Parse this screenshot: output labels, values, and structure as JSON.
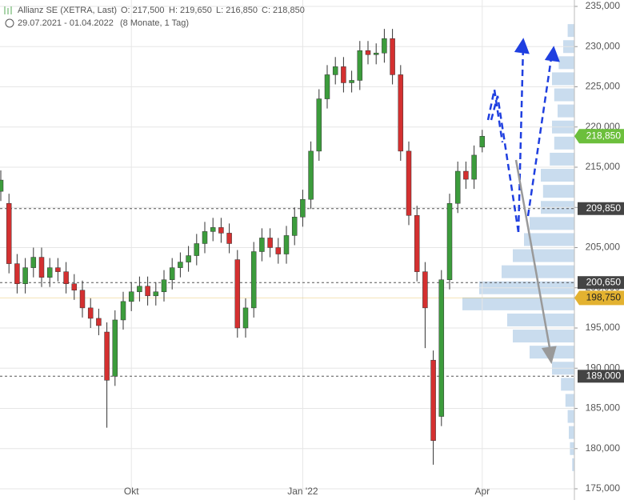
{
  "header": {
    "title": "Allianz SE (XETRA, Last)",
    "open": "O: 217,500",
    "high": "H: 219,650",
    "low": "L: 216,850",
    "close": "C: 218,850",
    "range": "29.07.2021 - 01.04.2022",
    "period": "(8 Monate, 1 Tag)"
  },
  "chart_data": {
    "type": "candlestick",
    "categories": [
      null,
      null,
      null,
      null,
      null,
      null,
      null,
      null,
      null,
      null,
      null,
      null,
      null,
      null,
      null,
      null,
      "Okt",
      null,
      null,
      null,
      null,
      null,
      null,
      null,
      null,
      null,
      null,
      null,
      null,
      null,
      null,
      null,
      null,
      null,
      null,
      null,
      null,
      "Jan '22",
      null,
      null,
      null,
      null,
      null,
      null,
      null,
      null,
      null,
      null,
      null,
      null,
      null,
      null,
      null,
      null,
      null,
      null,
      null,
      null,
      null,
      "Apr"
    ],
    "open": [
      212000,
      210500,
      203000,
      200500,
      202500,
      203800,
      201300,
      202500,
      202000,
      200500,
      199700,
      197500,
      196200,
      194500,
      189000,
      196000,
      198300,
      199500,
      200200,
      199000,
      199500,
      201000,
      202500,
      203200,
      204000,
      205500,
      207000,
      207500,
      206800,
      203500,
      195000,
      197500,
      204500,
      206200,
      205000,
      204200,
      206500,
      208800,
      211000,
      217000,
      223500,
      226500,
      227500,
      225500,
      225800,
      229500,
      229000,
      229200,
      231000,
      226500,
      217000,
      209000,
      202000,
      191000,
      184000,
      201000,
      210500,
      214500,
      213500,
      217500
    ],
    "high": [
      214600,
      211700,
      204200,
      203700,
      205000,
      205000,
      203700,
      203700,
      203200,
      201700,
      200900,
      198700,
      197400,
      195700,
      197200,
      199500,
      200700,
      201400,
      201400,
      200700,
      202200,
      203700,
      204400,
      205200,
      206700,
      208200,
      208700,
      208700,
      208000,
      204700,
      198700,
      205700,
      207400,
      207400,
      206200,
      207700,
      210000,
      212200,
      218200,
      224700,
      227700,
      228700,
      228700,
      227000,
      230700,
      230700,
      230400,
      232200,
      232200,
      227700,
      218200,
      210200,
      203200,
      192200,
      202200,
      211700,
      215700,
      215700,
      217700,
      219650
    ],
    "low": [
      210800,
      201800,
      199300,
      199300,
      201300,
      200100,
      200100,
      200800,
      199300,
      198500,
      196300,
      195000,
      194100,
      182600,
      187800,
      194800,
      197100,
      198300,
      197800,
      197800,
      198300,
      199800,
      201300,
      202000,
      202800,
      204300,
      205800,
      205600,
      204300,
      193800,
      193800,
      196300,
      203300,
      203800,
      203000,
      203000,
      205300,
      207600,
      209800,
      215800,
      222300,
      225300,
      224300,
      224300,
      224600,
      227800,
      227800,
      228000,
      225300,
      215800,
      207800,
      200800,
      192500,
      178000,
      182800,
      199800,
      209300,
      212300,
      212300,
      216850
    ],
    "close": [
      213400,
      203000,
      200500,
      202500,
      203800,
      201300,
      202500,
      202000,
      200500,
      199700,
      197500,
      196200,
      195300,
      188500,
      196000,
      198300,
      199500,
      200200,
      199000,
      199500,
      201000,
      202500,
      203200,
      204000,
      205500,
      207000,
      207500,
      206800,
      205500,
      195000,
      197500,
      204500,
      206200,
      205000,
      204200,
      206500,
      208800,
      211000,
      217000,
      223500,
      226500,
      227500,
      225500,
      225800,
      229500,
      229000,
      229200,
      231000,
      226500,
      217000,
      209000,
      202000,
      197500,
      181000,
      201000,
      210500,
      214500,
      213500,
      216500,
      218850
    ],
    "up_color": "#3c9c3c",
    "down_color": "#d43030",
    "ylim": [
      175000,
      235000
    ],
    "yticks": [
      {
        "value": 175000,
        "label": "175,000"
      },
      {
        "value": 180000,
        "label": "180,000"
      },
      {
        "value": 185000,
        "label": "185,000"
      },
      {
        "value": 190000,
        "label": "190,000"
      },
      {
        "value": 195000,
        "label": "195,000"
      },
      {
        "value": 200000,
        "label": "200,000"
      },
      {
        "value": 205000,
        "label": "205,000"
      },
      {
        "value": 210000,
        "label": "210,000"
      },
      {
        "value": 215000,
        "label": "215,000"
      },
      {
        "value": 220000,
        "label": "220,000"
      },
      {
        "value": 225000,
        "label": "225,000"
      },
      {
        "value": 230000,
        "label": "230,000"
      },
      {
        "value": 235000,
        "label": "235,000"
      }
    ],
    "levels": [
      {
        "value": 209850,
        "label": "209,850"
      },
      {
        "value": 200650,
        "label": "200,650"
      },
      {
        "value": 189000,
        "label": "189,000"
      }
    ],
    "last_price": {
      "value": 218850,
      "label": "218,850",
      "color": "#6cbf3c"
    },
    "poc_price": {
      "value": 198750,
      "label": "198,750",
      "color": "#e3b230"
    },
    "grid": true,
    "volume_profile": {
      "color": "#bcd3ea",
      "prices": [
        178000,
        180000,
        182000,
        184000,
        186000,
        188000,
        190000,
        192000,
        194000,
        196000,
        198000,
        200000,
        202000,
        204000,
        206000,
        208000,
        210000,
        212000,
        214000,
        216000,
        218000,
        220000,
        222000,
        224000,
        226000,
        228000,
        230000,
        232000
      ],
      "volumes": [
        2,
        4,
        5,
        6,
        8,
        12,
        20,
        40,
        55,
        60,
        100,
        85,
        65,
        55,
        45,
        40,
        30,
        28,
        30,
        22,
        18,
        20,
        15,
        18,
        20,
        14,
        10,
        6
      ]
    }
  }
}
